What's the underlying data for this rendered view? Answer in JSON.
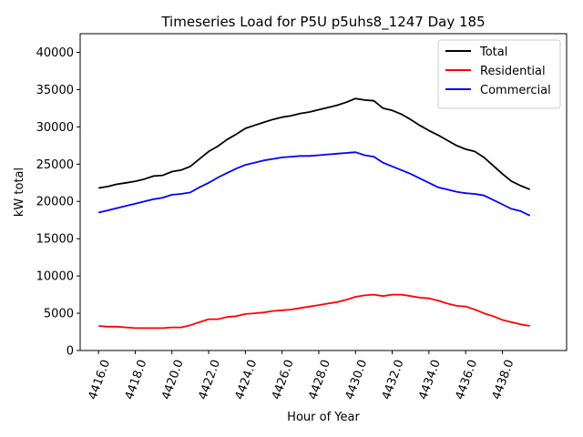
{
  "chart_data": {
    "type": "line",
    "title": "Timeseries Load for P5U p5uhs8_1247  Day 185",
    "xlabel": "Hour of Year",
    "ylabel": "kW total",
    "xlim": [
      4415.0,
      4441.5
    ],
    "ylim": [
      0,
      42500
    ],
    "x_ticks": [
      4416.0,
      4418.0,
      4420.0,
      4422.0,
      4424.0,
      4426.0,
      4428.0,
      4430.0,
      4432.0,
      4434.0,
      4436.0,
      4438.0
    ],
    "x_tick_labels": [
      "4416.0",
      "4418.0",
      "4420.0",
      "4422.0",
      "4424.0",
      "4426.0",
      "4428.0",
      "4430.0",
      "4432.0",
      "4434.0",
      "4436.0",
      "4438.0"
    ],
    "y_ticks": [
      0,
      5000,
      10000,
      15000,
      20000,
      25000,
      30000,
      35000,
      40000
    ],
    "y_tick_labels": [
      "0",
      "5000",
      "10000",
      "15000",
      "20000",
      "25000",
      "30000",
      "35000",
      "40000"
    ],
    "legend_position": "top-right",
    "grid": false,
    "x": [
      4416.0,
      4416.5,
      4417.0,
      4417.5,
      4418.0,
      4418.5,
      4419.0,
      4419.5,
      4420.0,
      4420.5,
      4421.0,
      4421.5,
      4422.0,
      4422.5,
      4423.0,
      4423.5,
      4424.0,
      4424.5,
      4425.0,
      4425.5,
      4426.0,
      4426.5,
      4427.0,
      4427.5,
      4428.0,
      4428.5,
      4429.0,
      4429.5,
      4430.0,
      4430.5,
      4431.0,
      4431.5,
      4432.0,
      4432.5,
      4433.0,
      4433.5,
      4434.0,
      4434.5,
      4435.0,
      4435.5,
      4436.0,
      4436.5,
      4437.0,
      4437.5,
      4438.0,
      4438.5,
      4439.0,
      4439.5
    ],
    "series": [
      {
        "name": "Total",
        "color": "#000000",
        "values": [
          21800,
          22000,
          22300,
          22500,
          22700,
          23000,
          23400,
          23500,
          24000,
          24200,
          24700,
          25700,
          26700,
          27400,
          28300,
          29000,
          29800,
          30200,
          30600,
          31000,
          31300,
          31500,
          31800,
          32000,
          32300,
          32600,
          32900,
          33300,
          33800,
          33600,
          33500,
          32500,
          32200,
          31700,
          31000,
          30200,
          29500,
          28900,
          28200,
          27500,
          27000,
          26700,
          25900,
          24800,
          23700,
          22700,
          22100,
          21600
        ]
      },
      {
        "name": "Residential",
        "color": "#ff0000",
        "values": [
          3300,
          3200,
          3200,
          3100,
          3000,
          3000,
          3000,
          3000,
          3100,
          3100,
          3400,
          3800,
          4200,
          4200,
          4500,
          4600,
          4900,
          5000,
          5100,
          5300,
          5400,
          5500,
          5700,
          5900,
          6100,
          6300,
          6500,
          6800,
          7200,
          7400,
          7500,
          7300,
          7500,
          7500,
          7300,
          7100,
          7000,
          6700,
          6300,
          6000,
          5900,
          5500,
          5000,
          4600,
          4100,
          3800,
          3500,
          3300
        ]
      },
      {
        "name": "Commercial",
        "color": "#0000ff",
        "values": [
          18500,
          18800,
          19100,
          19400,
          19700,
          20000,
          20300,
          20500,
          20900,
          21000,
          21200,
          21900,
          22500,
          23200,
          23800,
          24400,
          24900,
          25200,
          25500,
          25700,
          25900,
          26000,
          26100,
          26100,
          26200,
          26300,
          26400,
          26500,
          26600,
          26200,
          26000,
          25200,
          24700,
          24200,
          23700,
          23100,
          22500,
          21900,
          21600,
          21300,
          21100,
          21000,
          20800,
          20200,
          19600,
          19000,
          18700,
          18100
        ]
      }
    ]
  }
}
